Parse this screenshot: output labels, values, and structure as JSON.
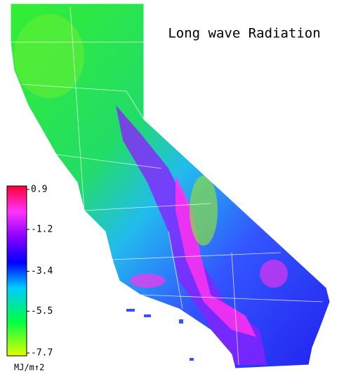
{
  "title": "Long wave Radiation",
  "colorbar": {
    "range": [
      -7.7,
      0.9
    ],
    "ticks": [
      0.9,
      -1.2,
      -3.4,
      -5.5,
      -7.7
    ],
    "unit": "MJ/m↑2"
  }
}
